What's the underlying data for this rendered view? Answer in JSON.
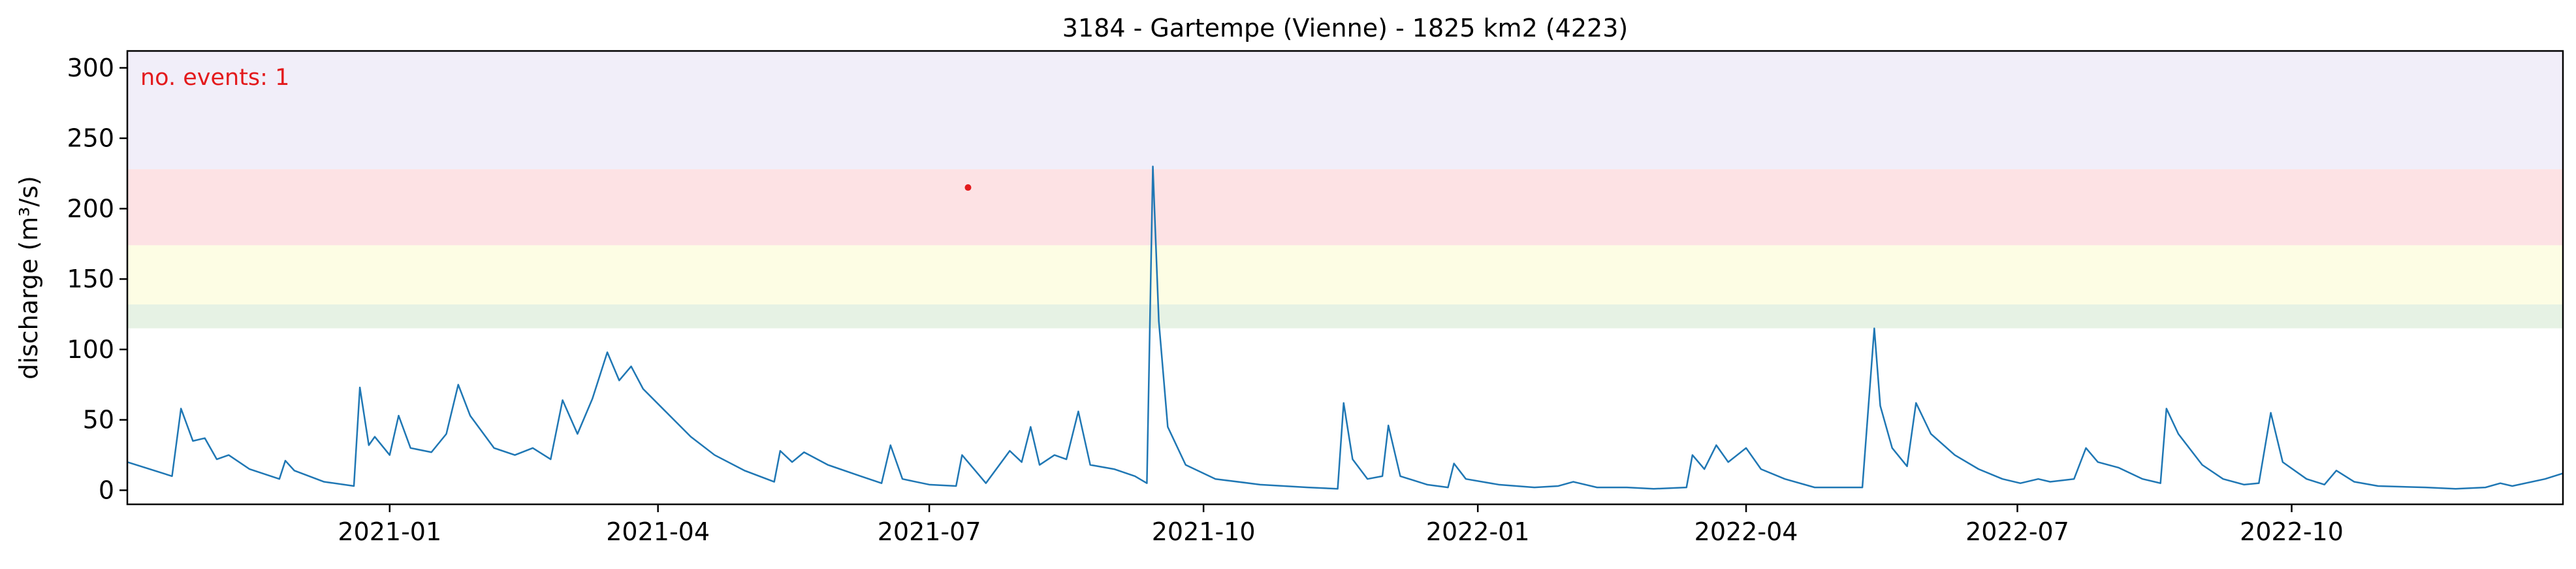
{
  "chart_data": {
    "type": "line",
    "title": "3184 - Gartempe (Vienne) - 1825 km2 (4223)",
    "xlabel": "",
    "ylabel": "discharge (m³/s)",
    "x_axis": {
      "type": "date",
      "range": [
        "2020-10-05",
        "2022-12-31"
      ],
      "tick_dates": [
        "2021-01-01",
        "2021-04-01",
        "2021-07-01",
        "2021-10-01",
        "2022-01-01",
        "2022-04-01",
        "2022-07-01",
        "2022-10-01"
      ],
      "tick_labels": [
        "2021-01",
        "2021-04",
        "2021-07",
        "2021-10",
        "2022-01",
        "2022-04",
        "2022-07",
        "2022-10"
      ]
    },
    "y_axis": {
      "range": [
        -10,
        312
      ],
      "ticks": [
        0,
        50,
        100,
        150,
        200,
        250,
        300
      ],
      "tick_labels": [
        "0",
        "50",
        "100",
        "150",
        "200",
        "250",
        "300"
      ]
    },
    "grid": false,
    "threshold_bands": [
      {
        "from": 115,
        "to": 132,
        "color": "#e6f2e4"
      },
      {
        "from": 132,
        "to": 174,
        "color": "#fdfde4"
      },
      {
        "from": 174,
        "to": 228,
        "color": "#fde2e4"
      },
      {
        "from": 228,
        "to": 312,
        "color": "#f1eef9"
      }
    ],
    "annotation": {
      "text": "no. events: 1",
      "color": "#e31a1c",
      "placement": "top-left"
    },
    "event_points": [
      {
        "date": "2021-07-14",
        "value": 215,
        "color": "#e31a1c"
      }
    ],
    "series": [
      {
        "color": "#1f77b4",
        "points": [
          [
            "2020-10-05",
            20
          ],
          [
            "2020-10-20",
            10
          ],
          [
            "2020-10-23",
            58
          ],
          [
            "2020-10-27",
            35
          ],
          [
            "2020-10-31",
            37
          ],
          [
            "2020-11-04",
            22
          ],
          [
            "2020-11-08",
            25
          ],
          [
            "2020-11-15",
            15
          ],
          [
            "2020-11-25",
            8
          ],
          [
            "2020-11-27",
            21
          ],
          [
            "2020-11-30",
            14
          ],
          [
            "2020-12-10",
            6
          ],
          [
            "2020-12-20",
            3
          ],
          [
            "2020-12-22",
            73
          ],
          [
            "2020-12-25",
            32
          ],
          [
            "2020-12-27",
            38
          ],
          [
            "2021-01-01",
            25
          ],
          [
            "2021-01-04",
            53
          ],
          [
            "2021-01-08",
            30
          ],
          [
            "2021-01-15",
            27
          ],
          [
            "2021-01-20",
            40
          ],
          [
            "2021-01-24",
            75
          ],
          [
            "2021-01-28",
            53
          ],
          [
            "2021-02-05",
            30
          ],
          [
            "2021-02-12",
            25
          ],
          [
            "2021-02-18",
            30
          ],
          [
            "2021-02-24",
            22
          ],
          [
            "2021-02-28",
            64
          ],
          [
            "2021-03-05",
            40
          ],
          [
            "2021-03-10",
            65
          ],
          [
            "2021-03-15",
            98
          ],
          [
            "2021-03-19",
            78
          ],
          [
            "2021-03-23",
            88
          ],
          [
            "2021-03-27",
            72
          ],
          [
            "2021-04-04",
            55
          ],
          [
            "2021-04-12",
            38
          ],
          [
            "2021-04-20",
            25
          ],
          [
            "2021-04-30",
            14
          ],
          [
            "2021-05-10",
            6
          ],
          [
            "2021-05-12",
            28
          ],
          [
            "2021-05-16",
            20
          ],
          [
            "2021-05-20",
            27
          ],
          [
            "2021-05-28",
            18
          ],
          [
            "2021-06-08",
            10
          ],
          [
            "2021-06-15",
            5
          ],
          [
            "2021-06-18",
            32
          ],
          [
            "2021-06-22",
            8
          ],
          [
            "2021-07-01",
            4
          ],
          [
            "2021-07-10",
            3
          ],
          [
            "2021-07-12",
            25
          ],
          [
            "2021-07-16",
            15
          ],
          [
            "2021-07-20",
            5
          ],
          [
            "2021-07-28",
            28
          ],
          [
            "2021-08-01",
            20
          ],
          [
            "2021-08-04",
            45
          ],
          [
            "2021-08-07",
            18
          ],
          [
            "2021-08-12",
            25
          ],
          [
            "2021-08-16",
            22
          ],
          [
            "2021-08-20",
            56
          ],
          [
            "2021-08-24",
            18
          ],
          [
            "2021-09-01",
            15
          ],
          [
            "2021-09-08",
            10
          ],
          [
            "2021-09-12",
            5
          ],
          [
            "2021-09-14",
            230
          ],
          [
            "2021-09-16",
            120
          ],
          [
            "2021-09-19",
            45
          ],
          [
            "2021-09-25",
            18
          ],
          [
            "2021-10-05",
            8
          ],
          [
            "2021-10-20",
            4
          ],
          [
            "2021-11-05",
            2
          ],
          [
            "2021-11-15",
            1
          ],
          [
            "2021-11-17",
            62
          ],
          [
            "2021-11-20",
            22
          ],
          [
            "2021-11-25",
            8
          ],
          [
            "2021-11-30",
            10
          ],
          [
            "2021-12-02",
            46
          ],
          [
            "2021-12-06",
            10
          ],
          [
            "2021-12-15",
            4
          ],
          [
            "2021-12-22",
            2
          ],
          [
            "2021-12-24",
            19
          ],
          [
            "2021-12-28",
            8
          ],
          [
            "2022-01-08",
            4
          ],
          [
            "2022-01-20",
            2
          ],
          [
            "2022-01-28",
            3
          ],
          [
            "2022-02-02",
            6
          ],
          [
            "2022-02-10",
            2
          ],
          [
            "2022-02-20",
            2
          ],
          [
            "2022-03-01",
            1
          ],
          [
            "2022-03-12",
            2
          ],
          [
            "2022-03-14",
            25
          ],
          [
            "2022-03-18",
            15
          ],
          [
            "2022-03-22",
            32
          ],
          [
            "2022-03-26",
            20
          ],
          [
            "2022-04-01",
            30
          ],
          [
            "2022-04-06",
            15
          ],
          [
            "2022-04-14",
            8
          ],
          [
            "2022-04-24",
            2
          ],
          [
            "2022-05-10",
            2
          ],
          [
            "2022-05-14",
            115
          ],
          [
            "2022-05-16",
            60
          ],
          [
            "2022-05-20",
            30
          ],
          [
            "2022-05-25",
            17
          ],
          [
            "2022-05-28",
            62
          ],
          [
            "2022-06-02",
            40
          ],
          [
            "2022-06-10",
            25
          ],
          [
            "2022-06-18",
            15
          ],
          [
            "2022-06-26",
            8
          ],
          [
            "2022-07-02",
            5
          ],
          [
            "2022-07-08",
            8
          ],
          [
            "2022-07-12",
            6
          ],
          [
            "2022-07-20",
            8
          ],
          [
            "2022-07-24",
            30
          ],
          [
            "2022-07-28",
            20
          ],
          [
            "2022-08-04",
            16
          ],
          [
            "2022-08-12",
            8
          ],
          [
            "2022-08-18",
            5
          ],
          [
            "2022-08-20",
            58
          ],
          [
            "2022-08-24",
            40
          ],
          [
            "2022-09-01",
            18
          ],
          [
            "2022-09-08",
            8
          ],
          [
            "2022-09-15",
            4
          ],
          [
            "2022-09-20",
            5
          ],
          [
            "2022-09-24",
            55
          ],
          [
            "2022-09-28",
            20
          ],
          [
            "2022-10-06",
            8
          ],
          [
            "2022-10-12",
            4
          ],
          [
            "2022-10-16",
            14
          ],
          [
            "2022-10-22",
            6
          ],
          [
            "2022-10-30",
            3
          ],
          [
            "2022-11-15",
            2
          ],
          [
            "2022-11-25",
            1
          ],
          [
            "2022-12-05",
            2
          ],
          [
            "2022-12-10",
            5
          ],
          [
            "2022-12-14",
            3
          ],
          [
            "2022-12-25",
            8
          ],
          [
            "2022-12-31",
            12
          ]
        ]
      }
    ]
  }
}
